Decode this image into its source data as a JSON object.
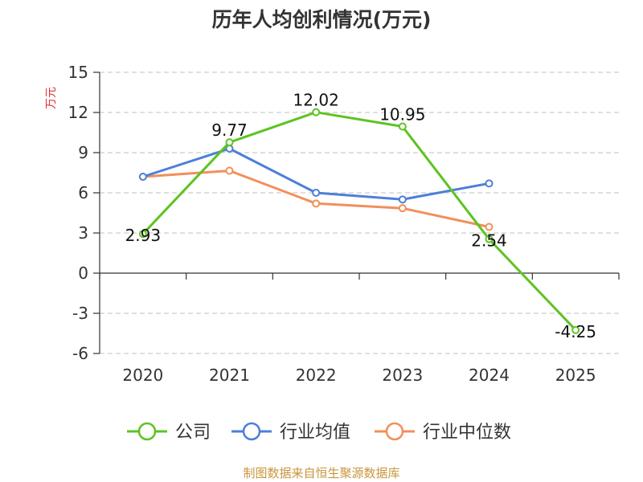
{
  "source_text": "制图数据来自恒生聚源数据库",
  "colors": {
    "axis": "#333333",
    "grid": "#cccccc",
    "unit": "#e0303a",
    "source": "#c8963c"
  },
  "chart_data": {
    "type": "line",
    "title": "历年人均创利情况(万元)",
    "ylabel": "万元",
    "xlabel": "",
    "categories": [
      "2020",
      "2021",
      "2022",
      "2023",
      "2024",
      "2025"
    ],
    "ylim": [
      -6,
      15
    ],
    "yticks": [
      -6,
      -3,
      0,
      3,
      6,
      9,
      12,
      15
    ],
    "grid": true,
    "legend_position": "bottom",
    "series": [
      {
        "name": "公司",
        "color": "#5cc421",
        "values": [
          2.93,
          9.77,
          12.02,
          10.95,
          2.54,
          -4.25
        ],
        "labels": [
          "2.93",
          "9.77",
          "12.02",
          "10.95",
          "2.54",
          "-4.25"
        ]
      },
      {
        "name": "行业均值",
        "color": "#4e7fd8",
        "values": [
          7.2,
          9.3,
          6.0,
          5.5,
          6.7,
          null
        ]
      },
      {
        "name": "行业中位数",
        "color": "#f28f5a",
        "values": [
          7.2,
          7.65,
          5.2,
          4.85,
          3.45,
          null
        ]
      }
    ]
  }
}
